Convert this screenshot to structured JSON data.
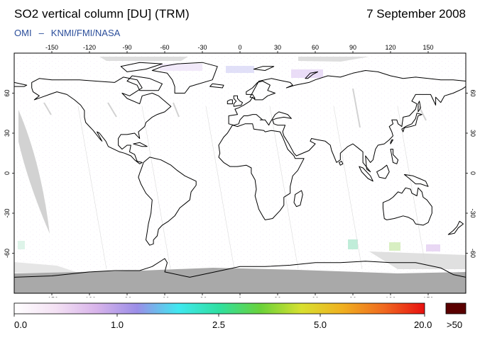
{
  "header": {
    "title": "SO2 vertical column [DU] (TRM)",
    "date": "7 September 2008",
    "credit_instrument": "OMI",
    "credit_separator": "–",
    "credit_agencies": "KNMI/FMI/NASA"
  },
  "map": {
    "projection": "equirectangular",
    "lon_range": [
      -180,
      180
    ],
    "lat_range": [
      -90,
      90
    ],
    "lon_ticks": [
      -150,
      -120,
      -90,
      -60,
      -30,
      0,
      30,
      60,
      90,
      120,
      150
    ],
    "lat_ticks": [
      60,
      30,
      0,
      -30,
      -60
    ],
    "background_color": "#ffffff",
    "no_data_color": "#d2d2d2",
    "polar_no_data_color": "#a9a9a9",
    "coastline_color": "#000000"
  },
  "colorbar": {
    "tick_labels": [
      "0.0",
      "1.0",
      "2.5",
      "5.0",
      "20.0"
    ],
    "overflow_label": ">50",
    "overflow_color": "#5a0000",
    "stops": [
      "#ffffff",
      "#f4e2f4",
      "#d8b4ea",
      "#9b8ee8",
      "#40e8f0",
      "#2fe0a0",
      "#6ad23a",
      "#d8e030",
      "#f0b020",
      "#f06a20",
      "#e81010"
    ]
  }
}
